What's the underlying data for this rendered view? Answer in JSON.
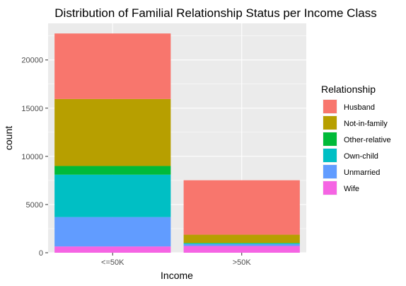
{
  "chart_data": {
    "type": "bar",
    "stacked": true,
    "title": "Distribution of Familial Relationship Status per Income Class",
    "xlabel": "Income",
    "ylabel": "count",
    "categories": [
      "<=50K",
      ">50K"
    ],
    "ylim": [
      0,
      23800
    ],
    "yticks": [
      0,
      5000,
      10000,
      15000,
      20000
    ],
    "ytick_labels": [
      "0",
      "5000",
      "10000",
      "15000",
      "20000"
    ],
    "grid": true,
    "legend": {
      "title": "Relationship",
      "placement": "right"
    },
    "series": [
      {
        "name": "Husband",
        "color": "#F8766D",
        "values": [
          6800,
          5650
        ]
      },
      {
        "name": "Not-in-family",
        "color": "#B79F00",
        "values": [
          6950,
          850
        ]
      },
      {
        "name": "Other-relative",
        "color": "#00BA38",
        "values": [
          900,
          50
        ]
      },
      {
        "name": "Own-child",
        "color": "#00BFC4",
        "values": [
          4400,
          70
        ]
      },
      {
        "name": "Unmarried",
        "color": "#619CFF",
        "values": [
          3050,
          200
        ]
      },
      {
        "name": "Wife",
        "color": "#F564E3",
        "values": [
          650,
          700
        ]
      }
    ]
  }
}
